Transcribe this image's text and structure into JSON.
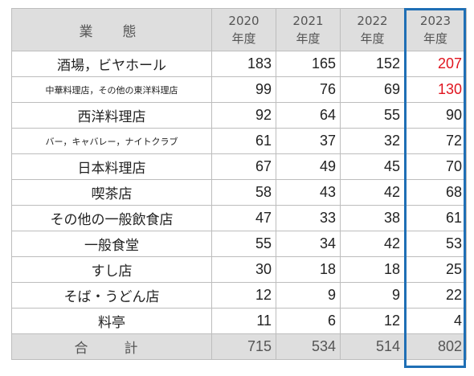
{
  "header": {
    "category": "業　態",
    "years": [
      {
        "year": "2020",
        "unit": "年度"
      },
      {
        "year": "2021",
        "unit": "年度"
      },
      {
        "year": "2022",
        "unit": "年度"
      },
      {
        "year": "2023",
        "unit": "年度"
      }
    ]
  },
  "rows": [
    {
      "category": "酒場，ビヤホール",
      "values": [
        "183",
        "165",
        "152",
        "207"
      ],
      "highlight_last": true
    },
    {
      "category": "中華料理店，その他の東洋料理店",
      "values": [
        "99",
        "76",
        "69",
        "130"
      ],
      "highlight_last": true
    },
    {
      "category": "西洋料理店",
      "values": [
        "92",
        "64",
        "55",
        "90"
      ],
      "highlight_last": false
    },
    {
      "category": "バー，キャバレー，ナイトクラブ",
      "values": [
        "61",
        "37",
        "32",
        "72"
      ],
      "highlight_last": false
    },
    {
      "category": "日本料理店",
      "values": [
        "67",
        "49",
        "45",
        "70"
      ],
      "highlight_last": false
    },
    {
      "category": "喫茶店",
      "values": [
        "58",
        "43",
        "42",
        "68"
      ],
      "highlight_last": false
    },
    {
      "category": "その他の一般飲食店",
      "values": [
        "47",
        "33",
        "38",
        "61"
      ],
      "highlight_last": false
    },
    {
      "category": "一般食堂",
      "values": [
        "55",
        "34",
        "42",
        "53"
      ],
      "highlight_last": false
    },
    {
      "category": "すし店",
      "values": [
        "30",
        "18",
        "18",
        "25"
      ],
      "highlight_last": false
    },
    {
      "category": "そば・うどん店",
      "values": [
        "12",
        "9",
        "9",
        "22"
      ],
      "highlight_last": false
    },
    {
      "category": "料亭",
      "values": [
        "11",
        "6",
        "12",
        "4"
      ],
      "highlight_last": false
    }
  ],
  "total": {
    "label": "合　計",
    "values": [
      "715",
      "534",
      "514",
      "802"
    ]
  },
  "colors": {
    "highlight_text": "#e0141e",
    "highlight_border": "#1f6fb5",
    "header_bg": "#dedede"
  }
}
